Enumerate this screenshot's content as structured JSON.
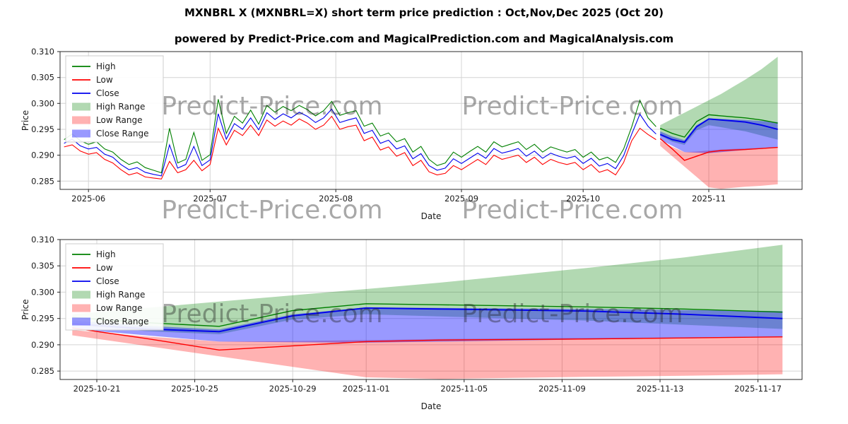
{
  "header": {
    "title": "MXNBRL X (MXNBRL=X) short term price prediction : Oct,Nov,Dec 2025 (Oct 20)",
    "subtitle": "powered by Predict-Price.com and MagicalPrediction.com and MagicalAnalysis.com"
  },
  "watermark": {
    "text": "Predict-Price.com",
    "color": "#8c8c8c",
    "opacity": 0.38
  },
  "axes_style": {
    "grid_color": "#d4d4d4",
    "spine_color": "#2b2b2b",
    "tick_color": "#262626",
    "label_color": "#111111"
  },
  "legend": {
    "items": [
      {
        "label": "High",
        "swatch": "line",
        "color": "#008000"
      },
      {
        "label": "Low",
        "swatch": "line",
        "color": "#ff0000"
      },
      {
        "label": "Close",
        "swatch": "line",
        "color": "#0000ee"
      },
      {
        "label": "High Range",
        "swatch": "patch",
        "color": "rgba(0,128,0,0.30)"
      },
      {
        "label": "Low Range",
        "swatch": "patch",
        "color": "rgba(255,0,0,0.30)"
      },
      {
        "label": "Close Range",
        "swatch": "patch",
        "color": "rgba(0,0,255,0.40)"
      }
    ]
  },
  "chart_data": [
    {
      "name": "history-and-forecast",
      "type": "line",
      "title": "",
      "xlabel": "Date",
      "ylabel": "Price",
      "grid": true,
      "legend_position": "upper left",
      "ylim": [
        0.2834,
        0.31
      ],
      "yticks": [
        0.285,
        0.29,
        0.295,
        0.3,
        0.305,
        0.31
      ],
      "x_epoch": "2025-05-23",
      "xlim": [
        2,
        185
      ],
      "xticks": [
        {
          "d": 9,
          "label": "2025-06"
        },
        {
          "d": 39,
          "label": "2025-07"
        },
        {
          "d": 70,
          "label": "2025-08"
        },
        {
          "d": 101,
          "label": "2025-09"
        },
        {
          "d": 131,
          "label": "2025-10"
        },
        {
          "d": 162,
          "label": "2025-11"
        }
      ],
      "history": {
        "start_date": "2025-05-26",
        "d0": 3,
        "step_days": 2,
        "series": [
          {
            "name": "High",
            "color": "#008000",
            "values": [
              0.293,
              0.2941,
              0.2928,
              0.2921,
              0.2926,
              0.2912,
              0.2906,
              0.2892,
              0.2882,
              0.2887,
              0.2876,
              0.2871,
              0.2866,
              0.2952,
              0.2885,
              0.2892,
              0.2944,
              0.289,
              0.2901,
              0.3008,
              0.2942,
              0.2975,
              0.2962,
              0.2987,
              0.296,
              0.2996,
              0.2983,
              0.2994,
              0.2986,
              0.2996,
              0.2988,
              0.2976,
              0.2986,
              0.3004,
              0.2977,
              0.2982,
              0.2986,
              0.2956,
              0.2962,
              0.2937,
              0.2943,
              0.2926,
              0.2932,
              0.2906,
              0.2917,
              0.2892,
              0.288,
              0.2885,
              0.2906,
              0.2896,
              0.2907,
              0.2917,
              0.2906,
              0.2926,
              0.2916,
              0.2921,
              0.2926,
              0.2911,
              0.2921,
              0.2906,
              0.2916,
              0.2911,
              0.2906,
              0.2911,
              0.2896,
              0.2906,
              0.2891,
              0.2896,
              0.2886,
              0.2912,
              0.2955,
              0.3006,
              0.2972,
              0.2955
            ]
          },
          {
            "name": "Low",
            "color": "#ff0000",
            "values": [
              0.2916,
              0.292,
              0.2908,
              0.2902,
              0.2905,
              0.2892,
              0.2885,
              0.2872,
              0.2862,
              0.2866,
              0.2858,
              0.2856,
              0.2854,
              0.2888,
              0.2866,
              0.2872,
              0.289,
              0.287,
              0.2882,
              0.2952,
              0.292,
              0.2948,
              0.2938,
              0.2958,
              0.2938,
              0.2968,
              0.2956,
              0.2966,
              0.2958,
              0.297,
              0.2962,
              0.295,
              0.2958,
              0.2975,
              0.295,
              0.2955,
              0.2958,
              0.2928,
              0.2935,
              0.291,
              0.2916,
              0.2898,
              0.2905,
              0.288,
              0.289,
              0.2868,
              0.2862,
              0.2865,
              0.288,
              0.2872,
              0.2882,
              0.2892,
              0.2882,
              0.29,
              0.2892,
              0.2896,
              0.29,
              0.2886,
              0.2896,
              0.2882,
              0.2892,
              0.2886,
              0.2882,
              0.2886,
              0.2872,
              0.2882,
              0.2867,
              0.2872,
              0.2862,
              0.2886,
              0.2928,
              0.2952,
              0.294,
              0.293
            ]
          },
          {
            "name": "Close",
            "color": "#0000ee",
            "values": [
              0.2923,
              0.2931,
              0.2918,
              0.2912,
              0.2915,
              0.2902,
              0.2896,
              0.2882,
              0.2872,
              0.2876,
              0.2867,
              0.2863,
              0.286,
              0.292,
              0.2875,
              0.2882,
              0.2917,
              0.288,
              0.2891,
              0.298,
              0.2931,
              0.2961,
              0.295,
              0.2972,
              0.2949,
              0.2982,
              0.2969,
              0.298,
              0.2972,
              0.2983,
              0.2975,
              0.2963,
              0.2972,
              0.2989,
              0.2963,
              0.2968,
              0.2972,
              0.2942,
              0.2948,
              0.2923,
              0.2929,
              0.2912,
              0.2918,
              0.2893,
              0.2903,
              0.288,
              0.2871,
              0.2875,
              0.2893,
              0.2884,
              0.2894,
              0.2904,
              0.2894,
              0.2913,
              0.2904,
              0.2908,
              0.2913,
              0.2898,
              0.2908,
              0.2894,
              0.2904,
              0.2898,
              0.2894,
              0.2898,
              0.2884,
              0.2894,
              0.2879,
              0.2884,
              0.2874,
              0.2899,
              0.2941,
              0.2979,
              0.2956,
              0.2941
            ]
          }
        ]
      },
      "forecast": {
        "dates": [
          "2025-10-20",
          "2025-10-23",
          "2025-10-26",
          "2025-10-29",
          "2025-11-01",
          "2025-11-04",
          "2025-11-07",
          "2025-11-10",
          "2025-11-14",
          "2025-11-18"
        ],
        "d": [
          150,
          153,
          156,
          159,
          162,
          165,
          168,
          171,
          175,
          179
        ],
        "lines": [
          {
            "name": "High",
            "color": "#008000",
            "values": [
              0.2952,
              0.2942,
              0.2935,
              0.2965,
              0.2978,
              0.2976,
              0.2974,
              0.2972,
              0.2968,
              0.2962
            ]
          },
          {
            "name": "Low",
            "color": "#ff0000",
            "values": [
              0.2932,
              0.2912,
              0.289,
              0.2898,
              0.2906,
              0.2909,
              0.291,
              0.2911,
              0.2913,
              0.2915
            ]
          },
          {
            "name": "Close",
            "color": "#0000ee",
            "values": [
              0.294,
              0.293,
              0.2925,
              0.2955,
              0.297,
              0.2968,
              0.2966,
              0.2964,
              0.2958,
              0.295
            ]
          }
        ],
        "bands": [
          {
            "name": "High Range",
            "fill": "rgba(0,128,0,0.30)",
            "upper": [
              0.2958,
              0.297,
              0.2982,
              0.2994,
              0.3006,
              0.3018,
              0.3032,
              0.3046,
              0.3066,
              0.309
            ],
            "lower": [
              0.2938,
              0.2926,
              0.292,
              0.2948,
              0.2958,
              0.2954,
              0.295,
              0.2946,
              0.2938,
              0.293
            ]
          },
          {
            "name": "Low Range",
            "fill": "rgba(255,0,0,0.30)",
            "upper": [
              0.2928,
              0.2916,
              0.2906,
              0.2907,
              0.2909,
              0.2911,
              0.2912,
              0.2913,
              0.2914,
              0.2916
            ],
            "lower": [
              0.2918,
              0.2898,
              0.2878,
              0.2858,
              0.2838,
              0.2835,
              0.2837,
              0.2839,
              0.2841,
              0.2844
            ]
          },
          {
            "name": "Close Range",
            "fill": "rgba(0,0,255,0.40)",
            "upper": [
              0.2946,
              0.2936,
              0.2929,
              0.2958,
              0.2971,
              0.297,
              0.2969,
              0.2968,
              0.2966,
              0.2964
            ],
            "lower": [
              0.293,
              0.2918,
              0.2906,
              0.2905,
              0.2904,
              0.2906,
              0.2908,
              0.291,
              0.2912,
              0.2915
            ]
          }
        ]
      }
    },
    {
      "name": "forecast-detail",
      "type": "line",
      "title": "",
      "xlabel": "Date",
      "ylabel": "Price",
      "grid": true,
      "legend_position": "upper left",
      "ylim": [
        0.2834,
        0.31
      ],
      "yticks": [
        0.285,
        0.29,
        0.295,
        0.3,
        0.305,
        0.31
      ],
      "x_epoch": "2025-05-23",
      "xlim": [
        149.5,
        179.8
      ],
      "xticks": [
        {
          "d": 151,
          "label": "2025-10-21"
        },
        {
          "d": 155,
          "label": "2025-10-25"
        },
        {
          "d": 159,
          "label": "2025-10-29"
        },
        {
          "d": 162,
          "label": "2025-11-01"
        },
        {
          "d": 166,
          "label": "2025-11-05"
        },
        {
          "d": 170,
          "label": "2025-11-09"
        },
        {
          "d": 174,
          "label": "2025-11-13"
        },
        {
          "d": 178,
          "label": "2025-11-17"
        }
      ],
      "forecast": {
        "dates": [
          "2025-10-20",
          "2025-10-23",
          "2025-10-26",
          "2025-10-29",
          "2025-11-01",
          "2025-11-04",
          "2025-11-07",
          "2025-11-10",
          "2025-11-14",
          "2025-11-18"
        ],
        "d": [
          150,
          153,
          156,
          159,
          162,
          165,
          168,
          171,
          175,
          179
        ],
        "lines": [
          {
            "name": "High",
            "color": "#008000",
            "values": [
              0.2952,
              0.2942,
              0.2935,
              0.2965,
              0.2978,
              0.2976,
              0.2974,
              0.2972,
              0.2968,
              0.2962
            ]
          },
          {
            "name": "Low",
            "color": "#ff0000",
            "values": [
              0.2932,
              0.2912,
              0.289,
              0.2898,
              0.2906,
              0.2909,
              0.291,
              0.2911,
              0.2913,
              0.2915
            ]
          },
          {
            "name": "Close",
            "color": "#0000ee",
            "values": [
              0.294,
              0.293,
              0.2925,
              0.2955,
              0.297,
              0.2968,
              0.2966,
              0.2964,
              0.2958,
              0.295
            ]
          }
        ],
        "bands": [
          {
            "name": "High Range",
            "fill": "rgba(0,128,0,0.30)",
            "upper": [
              0.2958,
              0.297,
              0.2982,
              0.2994,
              0.3006,
              0.3018,
              0.3032,
              0.3046,
              0.3066,
              0.309
            ],
            "lower": [
              0.2938,
              0.2926,
              0.292,
              0.2948,
              0.2958,
              0.2954,
              0.295,
              0.2946,
              0.2938,
              0.293
            ]
          },
          {
            "name": "Low Range",
            "fill": "rgba(255,0,0,0.30)",
            "upper": [
              0.2928,
              0.2916,
              0.2906,
              0.2907,
              0.2909,
              0.2911,
              0.2912,
              0.2913,
              0.2914,
              0.2916
            ],
            "lower": [
              0.2918,
              0.2898,
              0.2878,
              0.2858,
              0.2838,
              0.2835,
              0.2837,
              0.2839,
              0.2841,
              0.2844
            ]
          },
          {
            "name": "Close Range",
            "fill": "rgba(0,0,255,0.40)",
            "upper": [
              0.2946,
              0.2936,
              0.2929,
              0.2958,
              0.2971,
              0.297,
              0.2969,
              0.2968,
              0.2966,
              0.2964
            ],
            "lower": [
              0.293,
              0.2918,
              0.2906,
              0.2905,
              0.2904,
              0.2906,
              0.2908,
              0.291,
              0.2912,
              0.2915
            ]
          }
        ]
      }
    }
  ]
}
